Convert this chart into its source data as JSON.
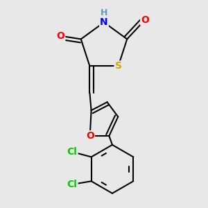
{
  "background_color": "#e8e8e8",
  "bond_color": "#000000",
  "atom_colors": {
    "O": "#ff0000",
    "N": "#0000ff",
    "S": "#ccaa00",
    "Cl": "#00cc00",
    "H": "#6699bb",
    "C": "#000000"
  },
  "bond_width": 1.5,
  "font_size": 10,
  "figsize": [
    3.0,
    3.0
  ],
  "dpi": 100
}
